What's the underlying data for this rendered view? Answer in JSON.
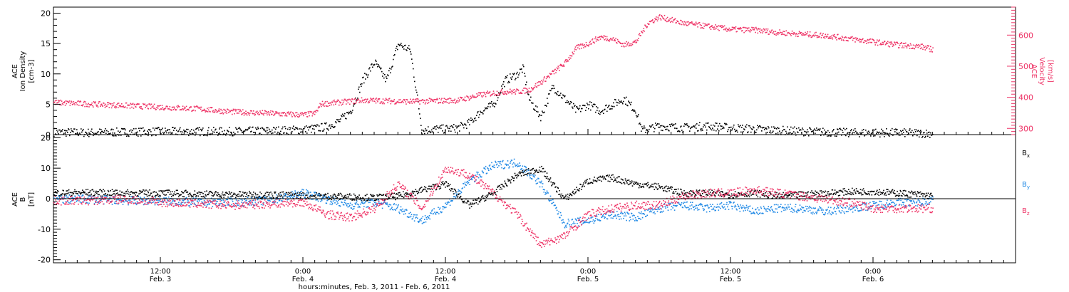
{
  "figure": {
    "xaxis_title": "hours:minutes, Feb.  3, 2011 - Feb.  6, 2011",
    "xticks": [
      {
        "time": "12:00",
        "date": "Feb. 3",
        "hours": 12
      },
      {
        "time": "0:00",
        "date": "Feb. 4",
        "hours": 24
      },
      {
        "time": "12:00",
        "date": "Feb. 4",
        "hours": 36
      },
      {
        "time": "0:00",
        "date": "Feb. 5",
        "hours": 48
      },
      {
        "time": "12:00",
        "date": "Feb. 5",
        "hours": 60
      },
      {
        "time": "0:00",
        "date": "Feb. 6",
        "hours": 72
      }
    ],
    "xlim_hours": [
      3,
      84
    ],
    "colors": {
      "black": "#000000",
      "pink": "#ee3366",
      "blue": "#1e88e5"
    }
  },
  "chart_data": [
    {
      "type": "scatter",
      "title": "",
      "x_unit": "hours since Feb. 3 0:00",
      "ylabel": [
        "ACE",
        "Ion Density",
        "[cm-3]"
      ],
      "ylim": [
        0,
        21
      ],
      "yticks": [
        0,
        5,
        10,
        15,
        20
      ],
      "y2label": [
        "ACE",
        "Velocity",
        "[km/s]"
      ],
      "y2lim": [
        280,
        690
      ],
      "y2ticks": [
        300,
        400,
        500,
        600
      ],
      "series": [
        {
          "name": "Ion Density",
          "axis": "left",
          "color": "#000000",
          "x": [
            3,
            6,
            9,
            12,
            15,
            18,
            21,
            24,
            25,
            26,
            27,
            28,
            29,
            30,
            31,
            32,
            33,
            34,
            35,
            36,
            37,
            38,
            39,
            40,
            41,
            42,
            42.5,
            43,
            44,
            45,
            46,
            47,
            48,
            49,
            50,
            51,
            52,
            52.5,
            54,
            56,
            58,
            60,
            62,
            64,
            66,
            68,
            70,
            72,
            74,
            76,
            77
          ],
          "y": [
            0.5,
            0.4,
            0.5,
            0.6,
            0.6,
            0.6,
            0.7,
            0.9,
            1.1,
            1.4,
            2.3,
            4,
            9,
            12,
            9,
            15,
            14,
            0.8,
            1,
            1,
            1.2,
            2,
            4,
            5,
            9,
            10,
            11,
            6,
            3,
            8,
            6,
            4,
            5,
            4,
            5,
            6,
            4,
            0.8,
            1.5,
            1.2,
            1.5,
            1.2,
            1,
            0.8,
            0.6,
            0.5,
            0.4,
            0.4,
            0.4,
            0.3,
            0.3
          ]
        },
        {
          "name": "Velocity",
          "axis": "right",
          "color": "#ee3366",
          "x": [
            3,
            6,
            9,
            12,
            15,
            18,
            21,
            24,
            25,
            25.5,
            27,
            29,
            31,
            33,
            35,
            37,
            39,
            41,
            42,
            43,
            44,
            45,
            46,
            47,
            48,
            49,
            50,
            51,
            52,
            53,
            54,
            55,
            56,
            57,
            58,
            60,
            62,
            64,
            66,
            68,
            70,
            72,
            73,
            74,
            76,
            77
          ],
          "y": [
            385,
            380,
            375,
            370,
            365,
            355,
            350,
            345,
            350,
            380,
            385,
            392,
            390,
            388,
            390,
            392,
            410,
            420,
            420,
            425,
            450,
            480,
            510,
            560,
            575,
            595,
            590,
            570,
            580,
            640,
            660,
            650,
            640,
            635,
            630,
            620,
            618,
            610,
            605,
            600,
            590,
            580,
            575,
            570,
            565,
            555
          ]
        }
      ]
    },
    {
      "type": "scatter",
      "title": "",
      "x_unit": "hours since Feb. 3 0:00",
      "ylabel": [
        "ACE",
        "B",
        "[nT]"
      ],
      "ylim": [
        -21,
        21
      ],
      "yticks": [
        -20,
        -10,
        0,
        10,
        20
      ],
      "series": [
        {
          "name": "Bx",
          "color": "#000000",
          "x": [
            3,
            6,
            9,
            12,
            15,
            18,
            21,
            24,
            26,
            28,
            30,
            32,
            34,
            36,
            38,
            40,
            42,
            44,
            46,
            48,
            50,
            52,
            54,
            56,
            58,
            60,
            62,
            64,
            66,
            68,
            70,
            72,
            74,
            76,
            77
          ],
          "y": [
            2,
            2.2,
            2,
            2,
            1.8,
            1.5,
            1.5,
            1.2,
            1,
            0.8,
            0.5,
            1,
            3,
            5,
            -2,
            2,
            8,
            10,
            0,
            6,
            7,
            5,
            4,
            2,
            2,
            1.5,
            2,
            1,
            1.5,
            2,
            2.5,
            2.5,
            2,
            1.5,
            1
          ]
        },
        {
          "name": "By",
          "color": "#1e88e5",
          "x": [
            3,
            6,
            9,
            12,
            15,
            18,
            21,
            24,
            26,
            28,
            30,
            32,
            34,
            36,
            38,
            40,
            42,
            44,
            46,
            48,
            50,
            52,
            54,
            56,
            58,
            60,
            62,
            64,
            66,
            68,
            70,
            72,
            74,
            76,
            77
          ],
          "y": [
            0,
            0,
            -0.5,
            -0.5,
            -1,
            -1,
            -0.5,
            2,
            0,
            -2,
            -1,
            -3,
            -7,
            -2,
            6,
            11,
            12,
            5,
            -8,
            -7,
            -5,
            -6,
            -3,
            -2,
            -3,
            -2,
            -4,
            -3,
            -3,
            -4,
            -3,
            -2,
            -1,
            -1,
            0
          ]
        },
        {
          "name": "Bz",
          "color": "#ee3366",
          "x": [
            3,
            6,
            9,
            12,
            15,
            18,
            21,
            24,
            26,
            28,
            30,
            32,
            34,
            36,
            38,
            40,
            42,
            44,
            46,
            48,
            50,
            52,
            54,
            56,
            58,
            60,
            62,
            64,
            66,
            68,
            70,
            72,
            74,
            76,
            77
          ],
          "y": [
            -0.5,
            -0.5,
            0,
            -1,
            -1.5,
            -2,
            -1.5,
            -1,
            -5,
            -6,
            -3,
            5,
            -3,
            10,
            8,
            2,
            -5,
            -15,
            -12,
            -5,
            -3,
            -2,
            -2,
            1,
            2,
            2,
            3,
            2,
            1,
            0,
            -1,
            -3,
            -3,
            -3,
            -3
          ]
        }
      ],
      "labels": {
        "bx": "B",
        "bx_sub": "x",
        "by": "B",
        "by_sub": "y",
        "bz": "B",
        "bz_sub": "z"
      }
    }
  ]
}
